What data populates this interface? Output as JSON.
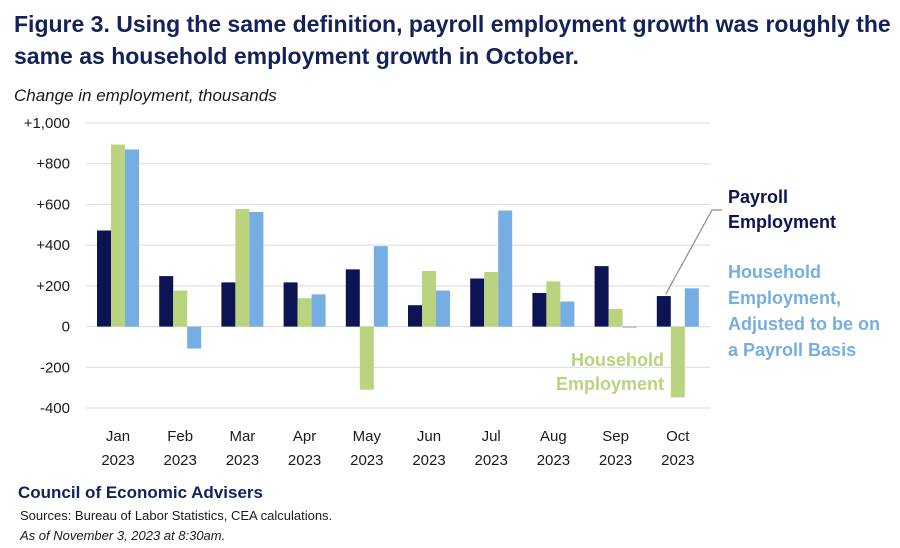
{
  "title": "Figure 3. Using the same definition, payroll employment growth was roughly the same as household employment growth in October.",
  "subtitle": "Change in employment, thousands",
  "footer": {
    "org": "Council of Economic Advisers",
    "sources": "Sources: Bureau of Labor Statistics, CEA calculations.",
    "asof": "As of November 3, 2023 at 8:30am."
  },
  "colors": {
    "payroll": "#0d1454",
    "household": "#b9d37f",
    "adjusted": "#76aee3",
    "title": "#14225a",
    "grid": "#d9d9d9"
  },
  "chart_data": {
    "type": "bar",
    "categories": [
      "Jan 2023",
      "Feb 2023",
      "Mar 2023",
      "Apr 2023",
      "May 2023",
      "Jun 2023",
      "Jul 2023",
      "Aug 2023",
      "Sep 2023",
      "Oct 2023"
    ],
    "category_lines": [
      [
        "Jan",
        "2023"
      ],
      [
        "Feb",
        "2023"
      ],
      [
        "Mar",
        "2023"
      ],
      [
        "Apr",
        "2023"
      ],
      [
        "May",
        "2023"
      ],
      [
        "Jun",
        "2023"
      ],
      [
        "Jul",
        "2023"
      ],
      [
        "Aug",
        "2023"
      ],
      [
        "Sep",
        "2023"
      ],
      [
        "Oct",
        "2023"
      ]
    ],
    "series": [
      {
        "name": "Payroll Employment",
        "values": [
          472,
          248,
          217,
          217,
          281,
          105,
          236,
          165,
          297,
          150
        ]
      },
      {
        "name": "Household Employment",
        "values": [
          894,
          177,
          577,
          139,
          -310,
          273,
          268,
          222,
          86,
          -348
        ]
      },
      {
        "name": "Household Employment, Adjusted to be on a Payroll Basis",
        "values": [
          870,
          -108,
          563,
          158,
          395,
          177,
          570,
          123,
          -5,
          188
        ]
      }
    ],
    "ylim": [
      -400,
      1000
    ],
    "yticks": [
      -400,
      -200,
      0,
      200,
      400,
      600,
      800,
      1000
    ],
    "ytick_labels": [
      "-400",
      "-200",
      "0",
      "+200",
      "+400",
      "+600",
      "+800",
      "+1,000"
    ],
    "grid": true,
    "legend_placement": "inline labels on right",
    "annotations": {
      "payroll": [
        "Payroll",
        "Employment"
      ],
      "household": [
        "Household",
        "Employment"
      ],
      "adjusted": [
        "Household",
        "Employment,",
        "Adjusted to be on",
        "a Payroll Basis"
      ]
    }
  }
}
